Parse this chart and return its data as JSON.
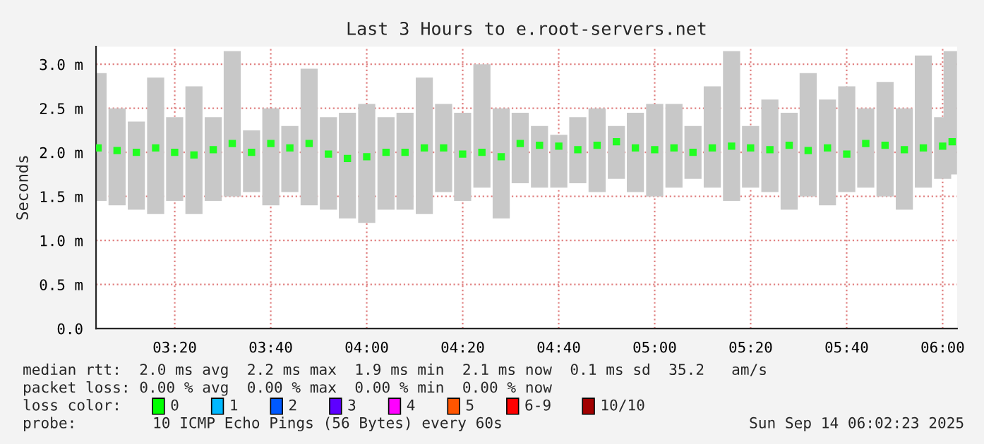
{
  "chart_data": {
    "type": "bar",
    "title": "Last 3 Hours to e.root-servers.net",
    "ylabel": "Seconds",
    "x": [
      3.067,
      3.133,
      3.2,
      3.267,
      3.333,
      3.4,
      3.467,
      3.533,
      3.6,
      3.667,
      3.733,
      3.8,
      3.867,
      3.933,
      4.0,
      4.067,
      4.133,
      4.2,
      4.267,
      4.333,
      4.4,
      4.467,
      4.533,
      4.6,
      4.667,
      4.733,
      4.8,
      4.867,
      4.933,
      5.0,
      5.067,
      5.133,
      5.2,
      5.267,
      5.333,
      5.4,
      5.467,
      5.533,
      5.6,
      5.667,
      5.733,
      5.8,
      5.867,
      5.933,
      6.0,
      6.033
    ],
    "series": [
      {
        "color": "#c8c8c8",
        "base": [
          1.45,
          1.4,
          1.35,
          1.3,
          1.45,
          1.3,
          1.45,
          1.5,
          1.55,
          1.4,
          1.55,
          1.4,
          1.35,
          1.25,
          1.2,
          1.35,
          1.35,
          1.3,
          1.55,
          1.45,
          1.6,
          1.25,
          1.65,
          1.6,
          1.6,
          1.65,
          1.55,
          1.7,
          1.55,
          1.5,
          1.6,
          1.7,
          1.6,
          1.45,
          1.6,
          1.55,
          1.35,
          1.5,
          1.4,
          1.55,
          1.6,
          1.5,
          1.35,
          1.6,
          1.7,
          1.75
        ],
        "values": [
          1.45,
          1.1,
          1.0,
          1.55,
          0.95,
          1.45,
          0.95,
          1.65,
          0.7,
          1.1,
          0.75,
          1.55,
          1.05,
          1.2,
          1.35,
          1.05,
          1.1,
          1.55,
          1.0,
          1.0,
          1.4,
          1.25,
          0.8,
          0.7,
          0.6,
          0.75,
          0.95,
          0.6,
          0.9,
          1.05,
          0.95,
          0.6,
          1.15,
          1.7,
          0.7,
          1.05,
          1.1,
          1.4,
          1.2,
          1.2,
          0.9,
          1.3,
          1.15,
          1.5,
          0.7,
          1.4
        ]
      },
      {
        "type": "scatter",
        "color": "#20ff20",
        "marker": "square",
        "values": [
          2.05,
          2.02,
          2.0,
          2.05,
          2.0,
          1.97,
          2.03,
          2.1,
          2.0,
          2.1,
          2.05,
          2.1,
          1.98,
          1.93,
          1.95,
          2.0,
          2.0,
          2.05,
          2.05,
          1.98,
          2.0,
          1.95,
          2.1,
          2.08,
          2.07,
          2.03,
          2.08,
          2.12,
          2.05,
          2.03,
          2.05,
          2.0,
          2.05,
          2.07,
          2.05,
          2.03,
          2.08,
          2.02,
          2.05,
          1.98,
          2.1,
          2.08,
          2.03,
          2.05,
          2.07,
          2.12
        ]
      }
    ],
    "xlim": [
      3.06,
      6.05
    ],
    "ylim": [
      0,
      3.2
    ],
    "xticks": [
      {
        "value": 3.3333,
        "label": "03:20"
      },
      {
        "value": 3.6667,
        "label": "03:40"
      },
      {
        "value": 4.0,
        "label": "04:00"
      },
      {
        "value": 4.3333,
        "label": "04:20"
      },
      {
        "value": 4.6667,
        "label": "04:40"
      },
      {
        "value": 5.0,
        "label": "05:00"
      },
      {
        "value": 5.3333,
        "label": "05:20"
      },
      {
        "value": 5.6667,
        "label": "05:40"
      },
      {
        "value": 6.0,
        "label": "06:00"
      }
    ],
    "yticks": [
      {
        "value": 0,
        "label": "0.0"
      },
      {
        "value": 0.5,
        "label": "0.5 m"
      },
      {
        "value": 1.0,
        "label": "1.0 m"
      },
      {
        "value": 1.5,
        "label": "1.5 m"
      },
      {
        "value": 2.0,
        "label": "2.0 m"
      },
      {
        "value": 2.5,
        "label": "2.5 m"
      },
      {
        "value": 3.0,
        "label": "3.0 m"
      }
    ],
    "grid": true,
    "legend": false,
    "annotations": [
      "median rtt:  2.0 ms avg  2.2 ms max  1.9 ms min  2.1 ms now  0.1 ms sd  35.2   am/s",
      "packet loss: 0.00 % avg  0.00 % max  0.00 % min  0.00 % now",
      "loss color:",
      "0",
      "1",
      "2",
      "3",
      "4",
      "5",
      "6-9",
      "10/10",
      "probe:",
      "10 ICMP Echo Pings (56 Bytes) every 60s",
      "Sun Sep 14 06:02:23 2025"
    ]
  }
}
